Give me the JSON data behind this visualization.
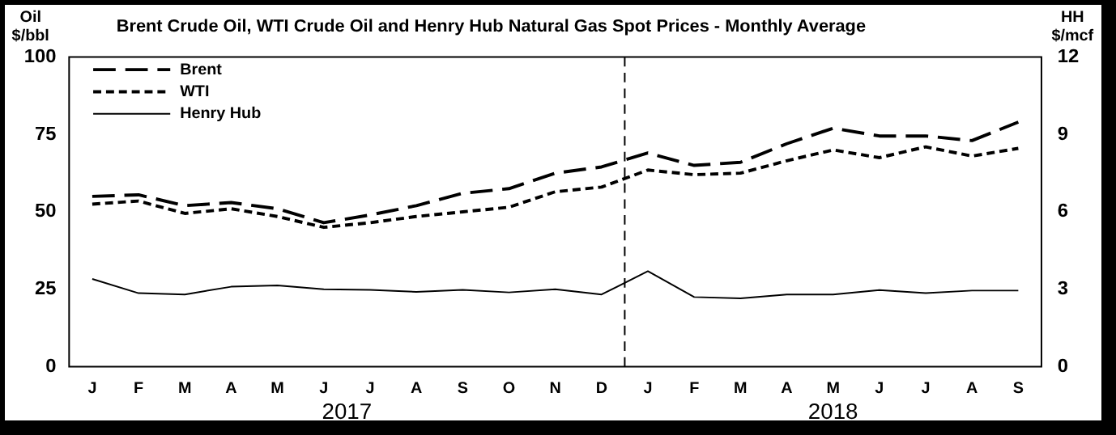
{
  "chart_data": {
    "type": "line",
    "title": "Brent Crude Oil, WTI Crude Oil and Henry Hub Natural Gas Spot Prices - Monthly Average",
    "ylabel": "Oil\n$/bbl",
    "y2label": "HH\n$/mcf",
    "categories": [
      "J",
      "F",
      "M",
      "A",
      "M",
      "J",
      "J",
      "A",
      "S",
      "O",
      "N",
      "D",
      "J",
      "F",
      "M",
      "A",
      "M",
      "J",
      "J",
      "A",
      "S"
    ],
    "series": [
      {
        "name": "Brent",
        "color": "#000000",
        "line_style": "dashed",
        "values": [
          55,
          55.5,
          52,
          53,
          51,
          46.5,
          49,
          52,
          56,
          57.5,
          62.5,
          64.5,
          69,
          65,
          66,
          72,
          77,
          74.5,
          74.5,
          73,
          79
        ]
      },
      {
        "name": "WTI",
        "color": "#000000",
        "line_style": "dotted",
        "values": [
          52.5,
          53.5,
          49.5,
          51,
          48.5,
          45,
          46.5,
          48.5,
          50,
          51.5,
          56.5,
          58,
          63.5,
          62,
          62.5,
          66.5,
          70,
          67.5,
          71,
          68,
          70.5
        ]
      },
      {
        "name": "Henry Hub",
        "color": "#000000",
        "line_style": "solid",
        "axis": "y2",
        "values": [
          3.4,
          2.85,
          2.8,
          3.1,
          3.15,
          3,
          2.98,
          2.9,
          2.98,
          2.88,
          3,
          2.8,
          3.7,
          2.7,
          2.65,
          2.8,
          2.8,
          2.97,
          2.85,
          2.95,
          2.95
        ]
      }
    ],
    "ylim": [
      0,
      100
    ],
    "yticks": [
      0,
      25,
      50,
      75,
      100
    ],
    "y2lim": [
      0,
      12
    ],
    "y2ticks": [
      0,
      3,
      6,
      9,
      12
    ],
    "annotations": [
      "2017",
      "2018"
    ],
    "grid": false,
    "legend": "top left",
    "marker": "none"
  }
}
